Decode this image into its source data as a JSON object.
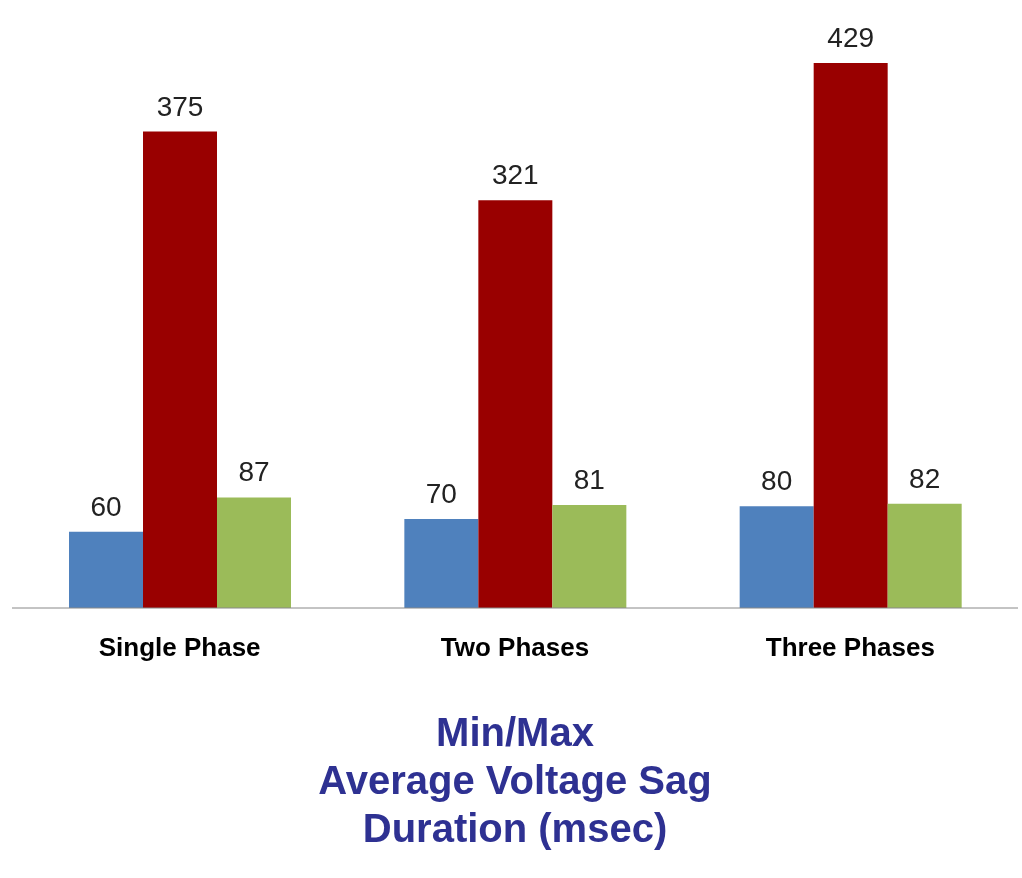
{
  "chart_data": {
    "type": "bar",
    "title": "Min/Max\nAverage Voltage Sag\nDuration (msec)",
    "categories": [
      "Single Phase",
      "Two Phases",
      "Three Phases"
    ],
    "series": [
      {
        "color": "#4f81bd",
        "values": [
          60,
          70,
          80
        ]
      },
      {
        "color": "#990000",
        "values": [
          375,
          321,
          429
        ]
      },
      {
        "color": "#9bbb59",
        "values": [
          87,
          81,
          82
        ]
      }
    ],
    "data_labels": true,
    "legend": false,
    "grid": false
  }
}
